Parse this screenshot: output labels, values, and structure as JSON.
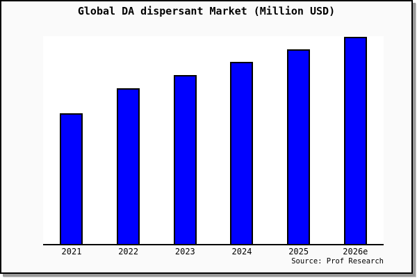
{
  "title": "Global DA dispersant Market (Million USD)",
  "source_label": "Source: Prof Research",
  "colors": {
    "bar_fill": "#0000ff",
    "bar_border": "#000000",
    "frame_background": "#fafafa",
    "plot_background": "#ffffff",
    "axis": "#000000",
    "text": "#000000"
  },
  "chart_data": {
    "type": "bar",
    "categories": [
      "2021",
      "2022",
      "2023",
      "2024",
      "2025",
      "2026e"
    ],
    "values": [
      63.3,
      75.3,
      81.7,
      88,
      94,
      100
    ],
    "values_unit": "relative-index (no numeric y-axis labels shown; 2026e = 100)",
    "title": "Global DA dispersant Market (Million USD)",
    "xlabel": "",
    "ylabel": "",
    "ylim": [
      0,
      101
    ],
    "y_axis_visible": false,
    "gridlines": false,
    "legend": "none",
    "caption": "Source: Prof Research"
  }
}
